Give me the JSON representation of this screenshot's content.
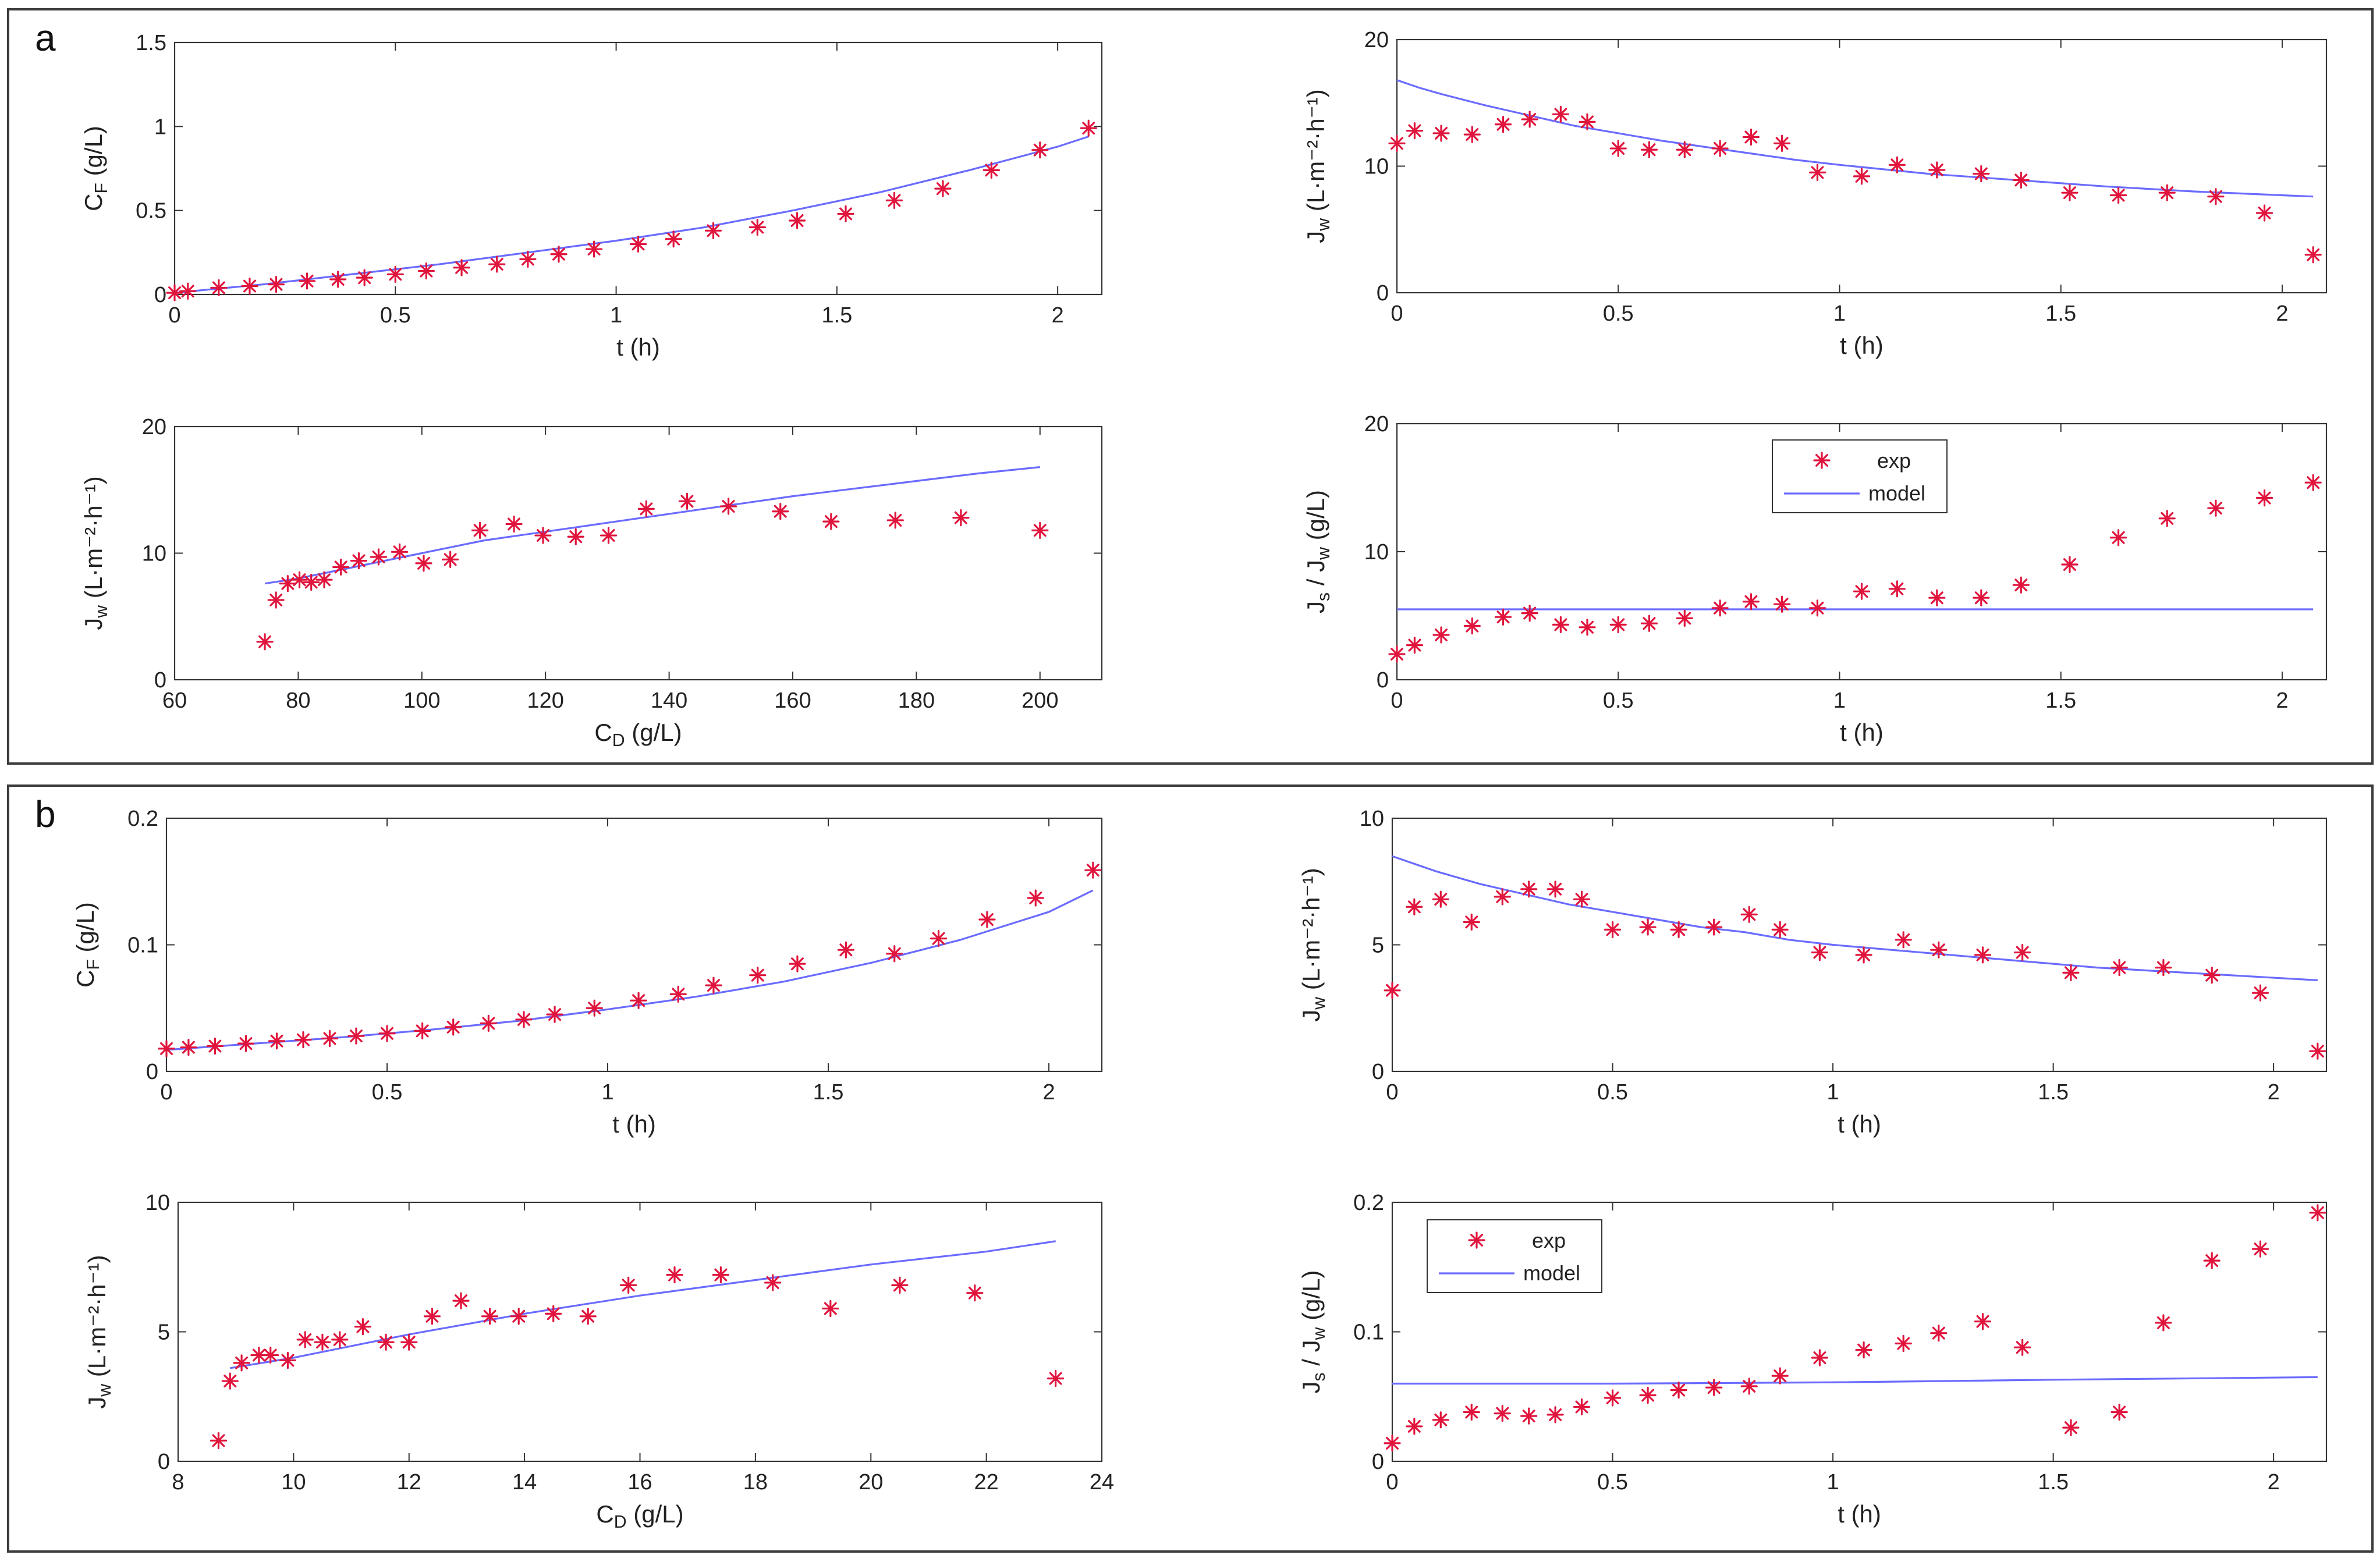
{
  "panels": [
    {
      "letter": "a"
    },
    {
      "letter": "b"
    }
  ],
  "legend": {
    "exp": "exp",
    "model": "model"
  },
  "colors": {
    "exp_marker": "#e0143c",
    "model_line": "#6b6bff",
    "axis": "#333333"
  },
  "chart_data": [
    {
      "id": "a1",
      "type": "scatter",
      "panel": "a",
      "xlabel": "t (h)",
      "ylabel_main": "C",
      "ylabel_sub": "F",
      "ylabel_rest": " (g/L)",
      "xlim": [
        0,
        2.1
      ],
      "ylim": [
        0,
        1.5
      ],
      "xticks": [
        0,
        0.5,
        1,
        1.5,
        2
      ],
      "xtick_labels": [
        "0",
        "0.5",
        "1",
        "1.5",
        "2"
      ],
      "yticks": [
        0,
        0.5,
        1,
        1.5
      ],
      "ytick_labels": [
        "0",
        "0.5",
        "1",
        "1.5"
      ],
      "grid": false,
      "legend": false,
      "series": [
        {
          "name": "exp",
          "x": [
            0,
            0.03,
            0.1,
            0.17,
            0.23,
            0.3,
            0.37,
            0.43,
            0.5,
            0.57,
            0.65,
            0.73,
            0.8,
            0.87,
            0.95,
            1.05,
            1.13,
            1.22,
            1.32,
            1.41,
            1.52,
            1.63,
            1.74,
            1.85,
            1.96,
            2.07
          ],
          "y": [
            0.01,
            0.02,
            0.04,
            0.05,
            0.06,
            0.08,
            0.09,
            0.1,
            0.12,
            0.14,
            0.16,
            0.18,
            0.21,
            0.24,
            0.27,
            0.3,
            0.33,
            0.38,
            0.4,
            0.44,
            0.48,
            0.56,
            0.63,
            0.74,
            0.86,
            0.99
          ]
        },
        {
          "name": "model",
          "x": [
            0,
            0.2,
            0.4,
            0.6,
            0.8,
            1.0,
            1.2,
            1.4,
            1.6,
            1.8,
            2.0,
            2.07
          ],
          "y": [
            0.01,
            0.06,
            0.12,
            0.18,
            0.25,
            0.32,
            0.4,
            0.5,
            0.61,
            0.74,
            0.88,
            0.94
          ]
        }
      ]
    },
    {
      "id": "a2",
      "type": "scatter",
      "panel": "a",
      "xlabel": "t (h)",
      "ylabel_main": "J",
      "ylabel_sub": "w",
      "ylabel_rest": " (L·m⁻²·h⁻¹)",
      "xlim": [
        0,
        2.1
      ],
      "ylim": [
        0,
        20
      ],
      "xticks": [
        0,
        0.5,
        1,
        1.5,
        2
      ],
      "xtick_labels": [
        "0",
        "0.5",
        "1",
        "1.5",
        "2"
      ],
      "yticks": [
        0,
        10,
        20
      ],
      "ytick_labels": [
        "0",
        "10",
        "20"
      ],
      "grid": false,
      "legend": false,
      "series": [
        {
          "name": "exp",
          "x": [
            0,
            0.04,
            0.1,
            0.17,
            0.24,
            0.3,
            0.37,
            0.43,
            0.5,
            0.57,
            0.65,
            0.73,
            0.8,
            0.87,
            0.95,
            1.05,
            1.13,
            1.22,
            1.32,
            1.41,
            1.52,
            1.63,
            1.74,
            1.85,
            1.96,
            2.07
          ],
          "y": [
            11.8,
            12.8,
            12.6,
            12.5,
            13.3,
            13.7,
            14.1,
            13.5,
            11.4,
            11.3,
            11.3,
            11.4,
            12.3,
            11.8,
            9.5,
            9.2,
            10.1,
            9.7,
            9.4,
            8.9,
            7.9,
            7.7,
            7.9,
            7.6,
            6.3,
            3.0
          ]
        },
        {
          "name": "model",
          "x": [
            0,
            0.05,
            0.1,
            0.2,
            0.3,
            0.4,
            0.5,
            0.6,
            0.7,
            0.8,
            0.9,
            1.0,
            1.2,
            1.4,
            1.6,
            1.8,
            2.0,
            2.07
          ],
          "y": [
            16.8,
            16.2,
            15.7,
            14.8,
            14.0,
            13.2,
            12.6,
            12.0,
            11.5,
            11.0,
            10.5,
            10.1,
            9.4,
            8.9,
            8.4,
            8.0,
            7.7,
            7.6
          ]
        }
      ]
    },
    {
      "id": "a3",
      "type": "scatter",
      "panel": "a",
      "xlabel_main": "C",
      "xlabel_sub": "D",
      "xlabel_rest": " (g/L)",
      "ylabel_main": "J",
      "ylabel_sub": "w",
      "ylabel_rest": " (L·m⁻²·h⁻¹)",
      "xlim": [
        60,
        210
      ],
      "ylim": [
        0,
        20
      ],
      "xticks": [
        60,
        80,
        100,
        120,
        140,
        160,
        180,
        200
      ],
      "xtick_labels": [
        "60",
        "80",
        "100",
        "120",
        "140",
        "160",
        "180",
        "200"
      ],
      "yticks": [
        0,
        10,
        20
      ],
      "ytick_labels": [
        "0",
        "10",
        "20"
      ],
      "grid": false,
      "legend": false,
      "series": [
        {
          "name": "exp",
          "x": [
            74.6,
            76.4,
            78.3,
            80.2,
            82.1,
            84.2,
            86.9,
            89.8,
            93.0,
            96.4,
            100.3,
            104.6,
            109.4,
            114.9,
            119.6,
            124.9,
            130.2,
            136.3,
            142.9,
            149.6,
            158.0,
            166.2,
            176.6,
            187.2,
            200.0
          ],
          "y": [
            3.0,
            6.3,
            7.6,
            7.9,
            7.7,
            7.9,
            8.9,
            9.4,
            9.7,
            10.1,
            9.2,
            9.5,
            11.8,
            12.3,
            11.4,
            11.3,
            11.4,
            13.5,
            14.1,
            13.7,
            13.3,
            12.5,
            12.6,
            12.8,
            11.8
          ]
        },
        {
          "name": "model",
          "x": [
            74.6,
            80,
            90,
            100,
            110,
            120,
            130,
            140,
            150,
            160,
            170,
            180,
            190,
            200
          ],
          "y": [
            7.6,
            8.0,
            9.0,
            10.0,
            11.0,
            11.7,
            12.4,
            13.1,
            13.8,
            14.5,
            15.1,
            15.7,
            16.3,
            16.8
          ]
        }
      ]
    },
    {
      "id": "a4",
      "type": "scatter",
      "panel": "a",
      "xlabel": "t (h)",
      "ylabel_main": "J",
      "ylabel_sub": "s",
      "ylabel_rest": " / J",
      "ylabel_sub2": "w",
      "ylabel_rest2": " (g/L)",
      "xlim": [
        0,
        2.1
      ],
      "ylim": [
        0,
        20
      ],
      "xticks": [
        0,
        0.5,
        1,
        1.5,
        2
      ],
      "xtick_labels": [
        "0",
        "0.5",
        "1",
        "1.5",
        "2"
      ],
      "yticks": [
        0,
        10,
        20
      ],
      "ytick_labels": [
        "0",
        "10",
        "20"
      ],
      "grid": false,
      "legend": true,
      "legend_loc": "upper-center",
      "series": [
        {
          "name": "exp",
          "x": [
            0,
            0.04,
            0.1,
            0.17,
            0.24,
            0.3,
            0.37,
            0.43,
            0.5,
            0.57,
            0.65,
            0.73,
            0.8,
            0.87,
            0.95,
            1.05,
            1.13,
            1.22,
            1.32,
            1.41,
            1.52,
            1.63,
            1.74,
            1.85,
            1.96,
            2.07
          ],
          "y": [
            2.0,
            2.7,
            3.5,
            4.2,
            4.9,
            5.2,
            4.3,
            4.1,
            4.3,
            4.4,
            4.8,
            5.6,
            6.1,
            5.9,
            5.6,
            6.9,
            7.1,
            6.4,
            6.4,
            7.4,
            9.0,
            11.1,
            12.6,
            13.4,
            14.2,
            15.4
          ]
        },
        {
          "name": "model",
          "x": [
            0,
            2.07
          ],
          "y": [
            5.5,
            5.5
          ]
        }
      ]
    },
    {
      "id": "b1",
      "type": "scatter",
      "panel": "b",
      "xlabel": "t (h)",
      "ylabel_main": "C",
      "ylabel_sub": "F",
      "ylabel_rest": " (g/L)",
      "xlim": [
        0,
        2.12
      ],
      "ylim": [
        0,
        0.2
      ],
      "xticks": [
        0,
        0.5,
        1,
        1.5,
        2
      ],
      "xtick_labels": [
        "0",
        "0.5",
        "1",
        "1.5",
        "2"
      ],
      "yticks": [
        0,
        0.1,
        0.2
      ],
      "ytick_labels": [
        "0",
        "0.1",
        "0.2"
      ],
      "grid": false,
      "legend": false,
      "series": [
        {
          "name": "exp",
          "x": [
            0,
            0.05,
            0.11,
            0.18,
            0.25,
            0.31,
            0.37,
            0.43,
            0.5,
            0.58,
            0.65,
            0.73,
            0.81,
            0.88,
            0.97,
            1.07,
            1.16,
            1.24,
            1.34,
            1.43,
            1.54,
            1.65,
            1.75,
            1.86,
            1.97,
            2.1
          ],
          "y": [
            0.018,
            0.019,
            0.02,
            0.022,
            0.024,
            0.025,
            0.026,
            0.028,
            0.03,
            0.032,
            0.035,
            0.038,
            0.041,
            0.045,
            0.05,
            0.056,
            0.061,
            0.068,
            0.076,
            0.085,
            0.096,
            0.093,
            0.105,
            0.12,
            0.137,
            0.159
          ]
        },
        {
          "name": "model",
          "x": [
            0,
            0.2,
            0.4,
            0.6,
            0.8,
            1.0,
            1.2,
            1.4,
            1.6,
            1.8,
            2.0,
            2.1
          ],
          "y": [
            0.017,
            0.022,
            0.027,
            0.033,
            0.04,
            0.049,
            0.059,
            0.071,
            0.086,
            0.104,
            0.126,
            0.143
          ]
        }
      ]
    },
    {
      "id": "b2",
      "type": "scatter",
      "panel": "b",
      "xlabel": "t (h)",
      "ylabel_main": "J",
      "ylabel_sub": "w",
      "ylabel_rest": " (L·m⁻²·h⁻¹)",
      "xlim": [
        0,
        2.12
      ],
      "ylim": [
        0,
        10
      ],
      "xticks": [
        0,
        0.5,
        1,
        1.5,
        2
      ],
      "xtick_labels": [
        "0",
        "0.5",
        "1",
        "1.5",
        "2"
      ],
      "yticks": [
        0,
        5,
        10
      ],
      "ytick_labels": [
        "0",
        "5",
        "10"
      ],
      "grid": false,
      "legend": false,
      "series": [
        {
          "name": "exp",
          "x": [
            0,
            0.05,
            0.11,
            0.18,
            0.25,
            0.31,
            0.37,
            0.43,
            0.5,
            0.58,
            0.65,
            0.73,
            0.81,
            0.88,
            0.97,
            1.07,
            1.16,
            1.24,
            1.34,
            1.43,
            1.54,
            1.65,
            1.75,
            1.86,
            1.97,
            2.1
          ],
          "y": [
            3.2,
            6.5,
            6.8,
            5.9,
            6.9,
            7.2,
            7.2,
            6.8,
            5.6,
            5.7,
            5.6,
            5.7,
            6.2,
            5.6,
            4.7,
            4.6,
            5.2,
            4.8,
            4.6,
            4.7,
            3.9,
            4.1,
            4.1,
            3.8,
            3.1,
            0.8
          ]
        },
        {
          "name": "model",
          "x": [
            0,
            0.05,
            0.1,
            0.2,
            0.3,
            0.4,
            0.5,
            0.6,
            0.7,
            0.8,
            0.9,
            1.0,
            1.2,
            1.4,
            1.6,
            1.8,
            2.0,
            2.1
          ],
          "y": [
            8.5,
            8.2,
            7.9,
            7.4,
            7.0,
            6.6,
            6.3,
            6.0,
            5.7,
            5.5,
            5.2,
            5.0,
            4.7,
            4.4,
            4.1,
            3.9,
            3.7,
            3.6
          ]
        }
      ]
    },
    {
      "id": "b3",
      "type": "scatter",
      "panel": "b",
      "xlabel_main": "C",
      "xlabel_sub": "D",
      "xlabel_rest": " (g/L)",
      "ylabel_main": "J",
      "ylabel_sub": "w",
      "ylabel_rest": " (L·m⁻²·h⁻¹)",
      "xlim": [
        8,
        24
      ],
      "ylim": [
        0,
        10
      ],
      "xticks": [
        8,
        10,
        12,
        14,
        16,
        18,
        20,
        22,
        24
      ],
      "xtick_labels": [
        "8",
        "10",
        "12",
        "14",
        "16",
        "18",
        "20",
        "22",
        "24"
      ],
      "yticks": [
        0,
        5,
        10
      ],
      "ytick_labels": [
        "0",
        "5",
        "10"
      ],
      "grid": false,
      "legend": false,
      "series": [
        {
          "name": "exp",
          "x": [
            8.7,
            8.9,
            9.1,
            9.4,
            9.6,
            9.9,
            10.2,
            10.5,
            10.8,
            11.2,
            11.6,
            12.0,
            12.4,
            12.9,
            13.4,
            13.9,
            14.5,
            15.1,
            15.8,
            16.6,
            17.4,
            18.3,
            19.3,
            20.5,
            21.8,
            23.2
          ],
          "y": [
            0.8,
            3.1,
            3.8,
            4.1,
            4.1,
            3.9,
            4.7,
            4.6,
            4.7,
            5.2,
            4.6,
            4.6,
            5.6,
            6.2,
            5.6,
            5.6,
            5.7,
            5.6,
            6.8,
            7.2,
            7.2,
            6.9,
            5.9,
            6.8,
            6.5,
            3.2
          ]
        },
        {
          "name": "model",
          "x": [
            8.9,
            10,
            12,
            14,
            16,
            18,
            20,
            22,
            23.2
          ],
          "y": [
            3.6,
            4.0,
            4.9,
            5.7,
            6.4,
            7.0,
            7.6,
            8.1,
            8.5
          ]
        }
      ]
    },
    {
      "id": "b4",
      "type": "scatter",
      "panel": "b",
      "xlabel": "t (h)",
      "ylabel_main": "J",
      "ylabel_sub": "s",
      "ylabel_rest": " / J",
      "ylabel_sub2": "w",
      "ylabel_rest2": " (g/L)",
      "xlim": [
        0,
        2.12
      ],
      "ylim": [
        0,
        0.2
      ],
      "xticks": [
        0,
        0.5,
        1,
        1.5,
        2
      ],
      "xtick_labels": [
        "0",
        "0.5",
        "1",
        "1.5",
        "2"
      ],
      "yticks": [
        0,
        0.1,
        0.2
      ],
      "ytick_labels": [
        "0",
        "0.1",
        "0.2"
      ],
      "grid": false,
      "legend": true,
      "legend_loc": "upper-left",
      "series": [
        {
          "name": "exp",
          "x": [
            0,
            0.05,
            0.11,
            0.18,
            0.25,
            0.31,
            0.37,
            0.43,
            0.5,
            0.58,
            0.65,
            0.73,
            0.81,
            0.88,
            0.97,
            1.07,
            1.16,
            1.24,
            1.34,
            1.43,
            1.54,
            1.65,
            1.75,
            1.86,
            1.97,
            2.1
          ],
          "y": [
            0.014,
            0.027,
            0.032,
            0.038,
            0.037,
            0.035,
            0.036,
            0.042,
            0.049,
            0.051,
            0.055,
            0.057,
            0.058,
            0.066,
            0.08,
            0.086,
            0.091,
            0.099,
            0.108,
            0.088,
            0.026,
            0.038,
            0.107,
            0.155,
            0.164,
            0.192
          ]
        },
        {
          "name": "model",
          "x": [
            0,
            0.5,
            1.0,
            1.5,
            2.1
          ],
          "y": [
            0.06,
            0.06,
            0.061,
            0.063,
            0.065
          ]
        }
      ]
    }
  ]
}
